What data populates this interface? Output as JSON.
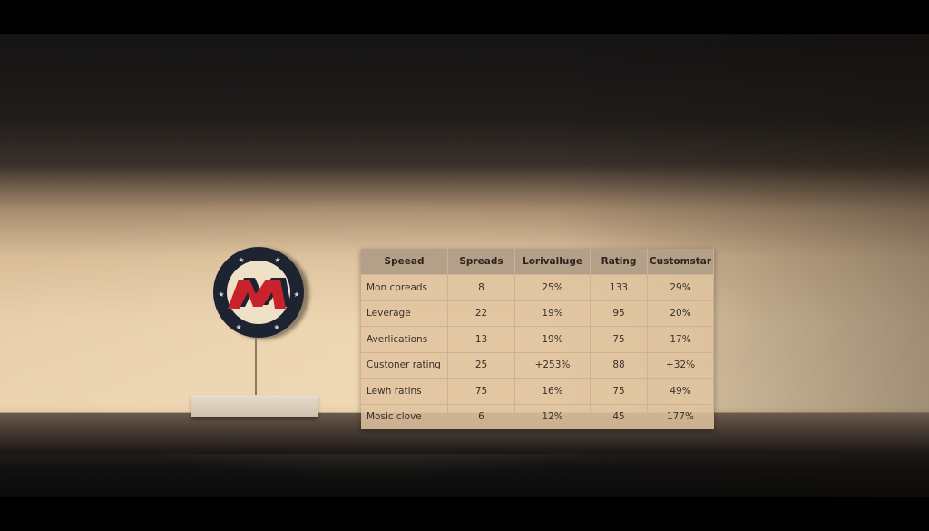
{
  "logo": {
    "letter": "M",
    "colors": {
      "ring": "#1d2330",
      "letter": "#c8232c"
    }
  },
  "table": {
    "headers": [
      "Speead",
      "Spreads",
      "Lorivalluge",
      "Rating",
      "Customstar"
    ],
    "rows": [
      [
        "Mon cpreads",
        "8",
        "25%",
        "133",
        "29%"
      ],
      [
        "Leverage",
        "22",
        "19%",
        "95",
        "20%"
      ],
      [
        "Averlications",
        "13",
        "19%",
        "75",
        "17%"
      ],
      [
        "Custoner rating",
        "25",
        "+253%",
        "88",
        "+32%"
      ],
      [
        "Lewh ratins",
        "75",
        "16%",
        "75",
        "49%"
      ],
      [
        "Mosic clove",
        "6",
        "12%",
        "45",
        "177%"
      ]
    ]
  }
}
